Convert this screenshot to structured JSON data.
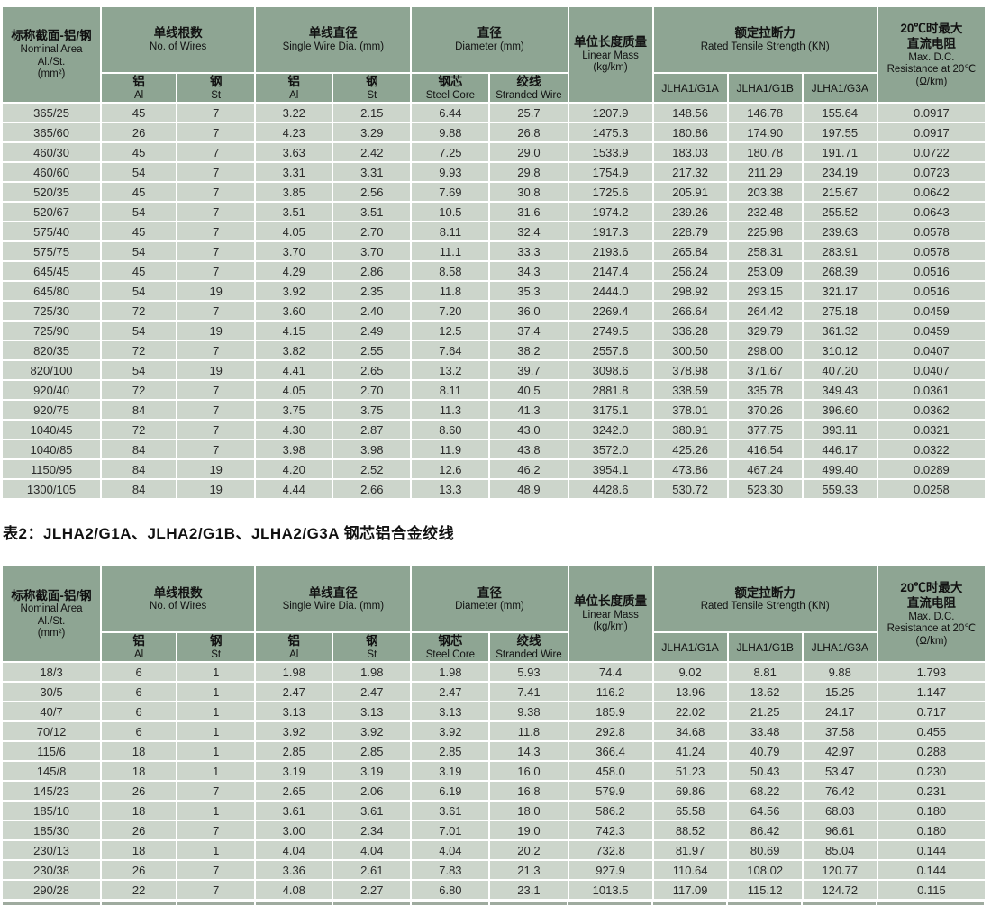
{
  "colors": {
    "page_bg": "#ffffff",
    "header_bg": "#8ea593",
    "cell_bg": "#ccd5cb",
    "text": "#1e1e1e"
  },
  "table2_title": "表2：JLHA2/G1A、JLHA2/G1B、JLHA2/G3A 钢芯铝合金绞线",
  "header": {
    "nominal_area_zh": "标称截面-铝/钢",
    "nominal_area_en": "Nominal Area",
    "nominal_area_en2": "Al./St.",
    "nominal_area_unit": "(mm²)",
    "wires_zh": "单线根数",
    "wires_en": "No. of Wires",
    "single_dia_zh": "单线直径",
    "single_dia_en": "Single Wire Dia. (mm)",
    "diameter_zh": "直径",
    "diameter_en": "Diameter (mm)",
    "mass_zh": "单位长度质量",
    "mass_en": "Linear Mass",
    "mass_unit": "(kg/km)",
    "tensile_zh": "额定拉断力",
    "tensile_en": "Rated Tensile Strength (KN)",
    "resistance_zh1": "20℃时最大",
    "resistance_zh2": "直流电阻",
    "resistance_en1": "Max. D.C.",
    "resistance_en2": "Resistance at 20℃",
    "resistance_unit": "(Ω/km)",
    "al_zh": "铝",
    "al_en": "Al",
    "st_zh": "钢",
    "st_en": "St",
    "steel_core_zh": "钢芯",
    "steel_core_en": "Steel Core",
    "stranded_zh": "绞线",
    "stranded_en": "Stranded Wire",
    "col_g1a": "JLHA1/G1A",
    "col_g1b": "JLHA1/G1B",
    "col_g3a": "JLHA1/G3A"
  },
  "table1": {
    "rows": [
      [
        "365/25",
        "45",
        "7",
        "3.22",
        "2.15",
        "6.44",
        "25.7",
        "1207.9",
        "148.56",
        "146.78",
        "155.64",
        "0.0917"
      ],
      [
        "365/60",
        "26",
        "7",
        "4.23",
        "3.29",
        "9.88",
        "26.8",
        "1475.3",
        "180.86",
        "174.90",
        "197.55",
        "0.0917"
      ],
      [
        "460/30",
        "45",
        "7",
        "3.63",
        "2.42",
        "7.25",
        "29.0",
        "1533.9",
        "183.03",
        "180.78",
        "191.71",
        "0.0722"
      ],
      [
        "460/60",
        "54",
        "7",
        "3.31",
        "3.31",
        "9.93",
        "29.8",
        "1754.9",
        "217.32",
        "211.29",
        "234.19",
        "0.0723"
      ],
      [
        "520/35",
        "45",
        "7",
        "3.85",
        "2.56",
        "7.69",
        "30.8",
        "1725.6",
        "205.91",
        "203.38",
        "215.67",
        "0.0642"
      ],
      [
        "520/67",
        "54",
        "7",
        "3.51",
        "3.51",
        "10.5",
        "31.6",
        "1974.2",
        "239.26",
        "232.48",
        "255.52",
        "0.0643"
      ],
      [
        "575/40",
        "45",
        "7",
        "4.05",
        "2.70",
        "8.11",
        "32.4",
        "1917.3",
        "228.79",
        "225.98",
        "239.63",
        "0.0578"
      ],
      [
        "575/75",
        "54",
        "7",
        "3.70",
        "3.70",
        "11.1",
        "33.3",
        "2193.6",
        "265.84",
        "258.31",
        "283.91",
        "0.0578"
      ],
      [
        "645/45",
        "45",
        "7",
        "4.29",
        "2.86",
        "8.58",
        "34.3",
        "2147.4",
        "256.24",
        "253.09",
        "268.39",
        "0.0516"
      ],
      [
        "645/80",
        "54",
        "19",
        "3.92",
        "2.35",
        "11.8",
        "35.3",
        "2444.0",
        "298.92",
        "293.15",
        "321.17",
        "0.0516"
      ],
      [
        "725/30",
        "72",
        "7",
        "3.60",
        "2.40",
        "7.20",
        "36.0",
        "2269.4",
        "266.64",
        "264.42",
        "275.18",
        "0.0459"
      ],
      [
        "725/90",
        "54",
        "19",
        "4.15",
        "2.49",
        "12.5",
        "37.4",
        "2749.5",
        "336.28",
        "329.79",
        "361.32",
        "0.0459"
      ],
      [
        "820/35",
        "72",
        "7",
        "3.82",
        "2.55",
        "7.64",
        "38.2",
        "2557.6",
        "300.50",
        "298.00",
        "310.12",
        "0.0407"
      ],
      [
        "820/100",
        "54",
        "19",
        "4.41",
        "2.65",
        "13.2",
        "39.7",
        "3098.6",
        "378.98",
        "371.67",
        "407.20",
        "0.0407"
      ],
      [
        "920/40",
        "72",
        "7",
        "4.05",
        "2.70",
        "8.11",
        "40.5",
        "2881.8",
        "338.59",
        "335.78",
        "349.43",
        "0.0361"
      ],
      [
        "920/75",
        "84",
        "7",
        "3.75",
        "3.75",
        "11.3",
        "41.3",
        "3175.1",
        "378.01",
        "370.26",
        "396.60",
        "0.0362"
      ],
      [
        "1040/45",
        "72",
        "7",
        "4.30",
        "2.87",
        "8.60",
        "43.0",
        "3242.0",
        "380.91",
        "377.75",
        "393.11",
        "0.0321"
      ],
      [
        "1040/85",
        "84",
        "7",
        "3.98",
        "3.98",
        "11.9",
        "43.8",
        "3572.0",
        "425.26",
        "416.54",
        "446.17",
        "0.0322"
      ],
      [
        "1150/95",
        "84",
        "19",
        "4.20",
        "2.52",
        "12.6",
        "46.2",
        "3954.1",
        "473.86",
        "467.24",
        "499.40",
        "0.0289"
      ],
      [
        "1300/105",
        "84",
        "19",
        "4.44",
        "2.66",
        "13.3",
        "48.9",
        "4428.6",
        "530.72",
        "523.30",
        "559.33",
        "0.0258"
      ]
    ]
  },
  "table2": {
    "rows": [
      [
        "18/3",
        "6",
        "1",
        "1.98",
        "1.98",
        "1.98",
        "5.93",
        "74.4",
        "9.02",
        "8.81",
        "9.88",
        "1.793"
      ],
      [
        "30/5",
        "6",
        "1",
        "2.47",
        "2.47",
        "2.47",
        "7.41",
        "116.2",
        "13.96",
        "13.62",
        "15.25",
        "1.147"
      ],
      [
        "40/7",
        "6",
        "1",
        "3.13",
        "3.13",
        "3.13",
        "9.38",
        "185.9",
        "22.02",
        "21.25",
        "24.17",
        "0.717"
      ],
      [
        "70/12",
        "6",
        "1",
        "3.92",
        "3.92",
        "3.92",
        "11.8",
        "292.8",
        "34.68",
        "33.48",
        "37.58",
        "0.455"
      ],
      [
        "115/6",
        "18",
        "1",
        "2.85",
        "2.85",
        "2.85",
        "14.3",
        "366.4",
        "41.24",
        "40.79",
        "42.97",
        "0.288"
      ],
      [
        "145/8",
        "18",
        "1",
        "3.19",
        "3.19",
        "3.19",
        "16.0",
        "458.0",
        "51.23",
        "50.43",
        "53.47",
        "0.230"
      ],
      [
        "145/23",
        "26",
        "7",
        "2.65",
        "2.06",
        "6.19",
        "16.8",
        "579.9",
        "69.86",
        "68.22",
        "76.42",
        "0.231"
      ],
      [
        "185/10",
        "18",
        "1",
        "3.61",
        "3.61",
        "3.61",
        "18.0",
        "586.2",
        "65.58",
        "64.56",
        "68.03",
        "0.180"
      ],
      [
        "185/30",
        "26",
        "7",
        "3.00",
        "2.34",
        "7.01",
        "19.0",
        "742.3",
        "88.52",
        "86.42",
        "96.61",
        "0.180"
      ],
      [
        "230/13",
        "18",
        "1",
        "4.04",
        "4.04",
        "4.04",
        "20.2",
        "732.8",
        "81.97",
        "80.69",
        "85.04",
        "0.144"
      ],
      [
        "230/38",
        "26",
        "7",
        "3.36",
        "2.61",
        "7.83",
        "21.3",
        "927.9",
        "110.64",
        "108.02",
        "120.77",
        "0.144"
      ],
      [
        "290/28",
        "22",
        "7",
        "4.08",
        "2.27",
        "6.80",
        "23.1",
        "1013.5",
        "117.09",
        "115.12",
        "124.72",
        "0.115"
      ]
    ]
  }
}
